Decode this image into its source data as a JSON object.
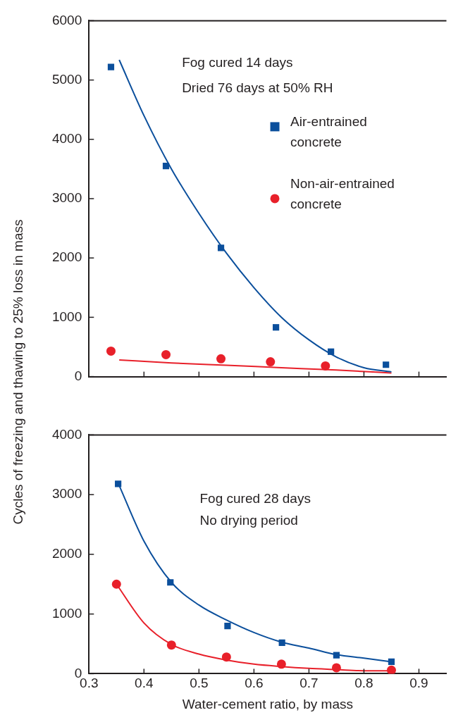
{
  "chart_data": [
    {
      "type": "scatter",
      "ylabel": "Cycles of freezing and thawing to 25% loss in mass",
      "annotations": [
        "Fog cured 14 days",
        "Dried 76 days at 50% RH"
      ],
      "xlim": [
        0.3,
        0.95
      ],
      "xticks": [
        {
          "value": 0.3,
          "label": null
        },
        {
          "value": 0.4,
          "label": null
        },
        {
          "value": 0.5,
          "label": null
        },
        {
          "value": 0.6,
          "label": null
        },
        {
          "value": 0.7,
          "label": null
        },
        {
          "value": 0.8,
          "label": null
        },
        {
          "value": 0.9,
          "label": null
        }
      ],
      "ylim": [
        0,
        6000
      ],
      "yticks": [
        0,
        1000,
        2000,
        3000,
        4000,
        5000,
        6000
      ],
      "tick_labels": "y",
      "grid": false,
      "legend": "top right",
      "series": [
        {
          "name": "Air-entrained concrete",
          "type": "scatter",
          "marker": "square",
          "color": "#0b4f9c",
          "x": [
            0.34,
            0.44,
            0.54,
            0.64,
            0.74,
            0.84
          ],
          "values": [
            5220,
            3550,
            2170,
            830,
            420,
            200
          ]
        },
        {
          "name": "Non-air-entrained concrete",
          "type": "scatter",
          "marker": "circle",
          "color": "#e8202a",
          "x": [
            0.34,
            0.44,
            0.54,
            0.63,
            0.73
          ],
          "values": [
            430,
            370,
            300,
            250,
            180
          ]
        },
        {
          "type": "line",
          "marker": "none",
          "color": "#0b4f9c",
          "x": [
            0.355,
            0.4,
            0.45,
            0.5,
            0.55,
            0.6,
            0.65,
            0.7,
            0.75,
            0.8,
            0.85
          ],
          "values": [
            5340,
            4400,
            3500,
            2750,
            2080,
            1500,
            1000,
            620,
            330,
            150,
            80
          ]
        },
        {
          "type": "line",
          "marker": "none",
          "color": "#e8202a",
          "x": [
            0.355,
            0.45,
            0.55,
            0.65,
            0.75,
            0.85
          ],
          "values": [
            280,
            230,
            190,
            150,
            110,
            60
          ]
        }
      ]
    },
    {
      "type": "scatter",
      "xlabel": "Water-cement ratio, by mass",
      "annotations": [
        "Fog cured 28 days",
        "No drying period"
      ],
      "xlim": [
        0.3,
        0.95
      ],
      "xticks": [
        0.3,
        0.4,
        0.5,
        0.6,
        0.7,
        0.8,
        0.9
      ],
      "ylim": [
        0,
        4000
      ],
      "yticks": [
        0,
        1000,
        2000,
        3000,
        4000
      ],
      "grid": false,
      "series": [
        {
          "type": "scatter",
          "marker": "square",
          "color": "#0b4f9c",
          "x": [
            0.353,
            0.448,
            0.552,
            0.651,
            0.75,
            0.85
          ],
          "values": [
            3180,
            1530,
            800,
            520,
            310,
            200
          ]
        },
        {
          "type": "scatter",
          "marker": "circle",
          "color": "#e8202a",
          "x": [
            0.35,
            0.45,
            0.55,
            0.65,
            0.75,
            0.85
          ],
          "values": [
            1500,
            480,
            280,
            160,
            100,
            60
          ]
        },
        {
          "type": "line",
          "marker": "none",
          "color": "#0b4f9c",
          "x": [
            0.355,
            0.4,
            0.45,
            0.5,
            0.55,
            0.6,
            0.65,
            0.7,
            0.75,
            0.8,
            0.85
          ],
          "values": [
            3150,
            2220,
            1530,
            1150,
            900,
            690,
            530,
            430,
            320,
            260,
            200
          ]
        },
        {
          "type": "line",
          "marker": "none",
          "color": "#e8202a",
          "x": [
            0.35,
            0.4,
            0.45,
            0.5,
            0.55,
            0.6,
            0.65,
            0.7,
            0.75,
            0.8,
            0.85
          ],
          "values": [
            1500,
            850,
            490,
            330,
            230,
            160,
            120,
            90,
            70,
            50,
            50
          ]
        }
      ]
    }
  ]
}
